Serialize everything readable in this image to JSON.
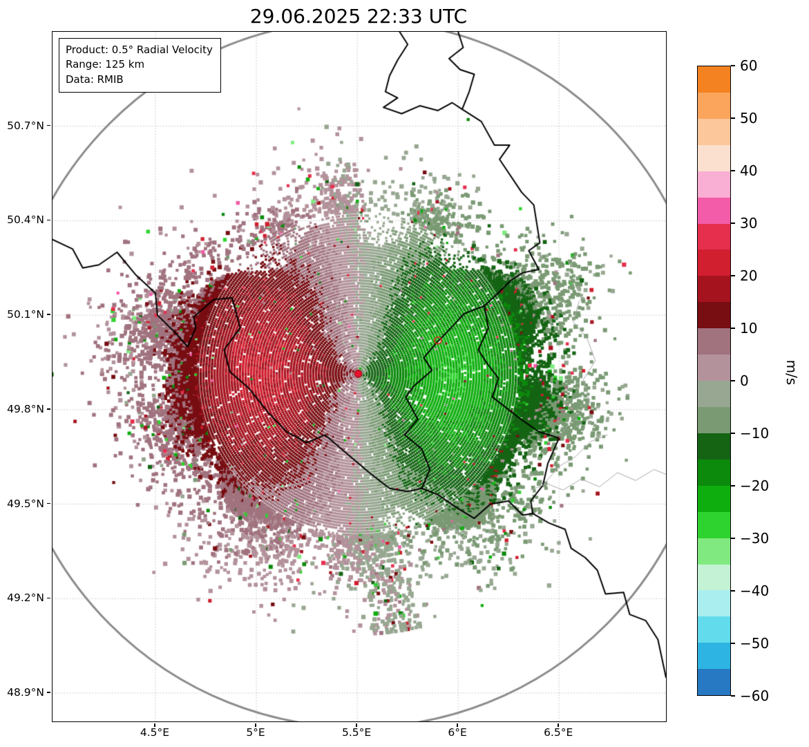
{
  "title": "29.06.2025 22:33 UTC",
  "info_box": {
    "product_line": "Product: 0.5° Radial Velocity",
    "range_line": "Range: 125 km",
    "data_line": "Data: RMIB"
  },
  "chart_data": {
    "type": "heatmap",
    "subtype": "doppler-radar-radial-velocity-ppi",
    "title": "29.06.2025 22:33 UTC",
    "product": "0.5° Radial Velocity",
    "range_km": 125,
    "data_source": "RMIB",
    "radar_site": {
      "lon": 5.505,
      "lat": 49.914,
      "marker_color": "#e8112d"
    },
    "secondary_marker": {
      "lon": 5.9,
      "lat": 50.02,
      "marker_color": "#dd2222"
    },
    "extent": {
      "lon_min": 3.99,
      "lon_max": 7.03,
      "lat_min": 48.81,
      "lat_max": 51.0
    },
    "x_axis": {
      "grid": true,
      "ticks": [
        {
          "value": 4.5,
          "label": "4.5°E"
        },
        {
          "value": 5.0,
          "label": "5°E"
        },
        {
          "value": 5.5,
          "label": "5.5°E"
        },
        {
          "value": 6.0,
          "label": "6°E"
        },
        {
          "value": 6.5,
          "label": "6.5°E"
        }
      ]
    },
    "y_axis": {
      "grid": true,
      "ticks": [
        {
          "value": 50.7,
          "label": "50.7°N"
        },
        {
          "value": 50.4,
          "label": "50.4°N"
        },
        {
          "value": 50.1,
          "label": "50.1°N"
        },
        {
          "value": 49.8,
          "label": "49.8°N"
        },
        {
          "value": 49.5,
          "label": "49.5°N"
        },
        {
          "value": 49.2,
          "label": "49.2°N"
        },
        {
          "value": 48.9,
          "label": "48.9°N"
        }
      ]
    },
    "colorbar": {
      "label": "m/s",
      "min": -60,
      "max": 60,
      "bin_size": 5,
      "ticks": [
        {
          "value": 60,
          "label": "60"
        },
        {
          "value": 50,
          "label": "50"
        },
        {
          "value": 40,
          "label": "40"
        },
        {
          "value": 30,
          "label": "30"
        },
        {
          "value": 20,
          "label": "20"
        },
        {
          "value": 10,
          "label": "10"
        },
        {
          "value": 0,
          "label": "0"
        },
        {
          "value": -10,
          "label": "−10"
        },
        {
          "value": -20,
          "label": "−20"
        },
        {
          "value": -30,
          "label": "−30"
        },
        {
          "value": -40,
          "label": "−40"
        },
        {
          "value": -50,
          "label": "−50"
        },
        {
          "value": -60,
          "label": "−60"
        }
      ],
      "colors_top_to_bottom": [
        "#f58220",
        "#fba55c",
        "#fcc79a",
        "#fbe0cf",
        "#f9aed3",
        "#f25ca8",
        "#e62e4d",
        "#d11f2f",
        "#a5131f",
        "#780d12",
        "#a0737f",
        "#b3929b",
        "#97a791",
        "#7a9a74",
        "#146414",
        "#0c8a0c",
        "#0fae0f",
        "#2fd32f",
        "#80ea80",
        "#c4f2d4",
        "#abeef0",
        "#62dcec",
        "#2db4e2",
        "#2779c4"
      ]
    },
    "velocity_field": {
      "pattern": "dipole",
      "outbound_azimuth_deg": 270,
      "outbound_side": "west",
      "inbound_side": "east",
      "peak_outbound_ms": 20,
      "peak_inbound_ms": -23,
      "core_radius_km": 55,
      "max_data_radius_km": 110,
      "zero_isodop": "north-south"
    },
    "range_ring": {
      "radius_km": 125,
      "color": "#8a8a8a"
    },
    "grid_color": "#bbbbbb",
    "borders": [
      {
        "name": "BE-NL",
        "color": "#000000",
        "width": 2,
        "points": [
          [
            5.71,
            51.0
          ],
          [
            5.75,
            50.96
          ],
          [
            5.7,
            50.91
          ],
          [
            5.66,
            50.86
          ],
          [
            5.64,
            50.81
          ],
          [
            5.7,
            50.79
          ],
          [
            5.63,
            50.76
          ],
          [
            5.72,
            50.74
          ],
          [
            5.81,
            50.765
          ],
          [
            5.9,
            50.75
          ],
          [
            5.97,
            50.775
          ],
          [
            6.02,
            50.754
          ]
        ]
      },
      {
        "name": "NL-DE",
        "color": "#000000",
        "width": 2,
        "points": [
          [
            6.0,
            51.0
          ],
          [
            6.025,
            50.95
          ],
          [
            5.955,
            50.915
          ],
          [
            6.01,
            50.88
          ],
          [
            6.08,
            50.865
          ],
          [
            6.055,
            50.81
          ],
          [
            6.02,
            50.754
          ]
        ]
      },
      {
        "name": "BE-DE",
        "color": "#000000",
        "width": 2,
        "points": [
          [
            6.02,
            50.754
          ],
          [
            6.115,
            50.715
          ],
          [
            6.18,
            50.64
          ],
          [
            6.255,
            50.64
          ],
          [
            6.205,
            50.595
          ],
          [
            6.315,
            50.49
          ],
          [
            6.375,
            50.45
          ],
          [
            6.405,
            50.33
          ],
          [
            6.35,
            50.305
          ],
          [
            6.4,
            50.245
          ],
          [
            6.32,
            50.235
          ],
          [
            6.26,
            50.21
          ],
          [
            6.19,
            50.165
          ],
          [
            6.13,
            50.13
          ]
        ]
      },
      {
        "name": "BE-LU",
        "color": "#000000",
        "width": 2,
        "points": [
          [
            6.13,
            50.13
          ],
          [
            6.03,
            50.105
          ],
          [
            5.965,
            50.06
          ],
          [
            5.89,
            50.01
          ],
          [
            5.83,
            49.965
          ],
          [
            5.87,
            49.925
          ],
          [
            5.78,
            49.875
          ],
          [
            5.74,
            49.84
          ],
          [
            5.8,
            49.77
          ],
          [
            5.735,
            49.72
          ],
          [
            5.82,
            49.675
          ],
          [
            5.86,
            49.61
          ],
          [
            5.82,
            49.55
          ]
        ]
      },
      {
        "name": "FR-BE",
        "color": "#000000",
        "width": 2,
        "points": [
          [
            3.99,
            50.34
          ],
          [
            4.09,
            50.31
          ],
          [
            4.14,
            50.25
          ],
          [
            4.22,
            50.26
          ],
          [
            4.31,
            50.3
          ],
          [
            4.4,
            50.23
          ],
          [
            4.5,
            50.17
          ],
          [
            4.51,
            50.1
          ],
          [
            4.59,
            50.05
          ],
          [
            4.66,
            50.0
          ],
          [
            4.7,
            50.06
          ],
          [
            4.69,
            50.095
          ],
          [
            4.79,
            50.15
          ],
          [
            4.88,
            50.155
          ],
          [
            4.92,
            50.06
          ],
          [
            4.84,
            49.99
          ],
          [
            4.87,
            49.92
          ],
          [
            4.96,
            49.87
          ],
          [
            5.06,
            49.79
          ],
          [
            5.15,
            49.73
          ],
          [
            5.25,
            49.695
          ],
          [
            5.34,
            49.72
          ],
          [
            5.45,
            49.66
          ],
          [
            5.56,
            49.6
          ],
          [
            5.66,
            49.55
          ],
          [
            5.75,
            49.54
          ],
          [
            5.82,
            49.55
          ]
        ]
      },
      {
        "name": "FR-LU",
        "color": "#000000",
        "width": 2,
        "points": [
          [
            5.82,
            49.55
          ],
          [
            5.9,
            49.53
          ],
          [
            5.99,
            49.49
          ],
          [
            6.08,
            49.455
          ],
          [
            6.16,
            49.5
          ],
          [
            6.25,
            49.51
          ],
          [
            6.32,
            49.465
          ],
          [
            6.37,
            49.47
          ]
        ]
      },
      {
        "name": "DE-LU",
        "color": "#000000",
        "width": 2,
        "points": [
          [
            6.13,
            50.13
          ],
          [
            6.15,
            50.06
          ],
          [
            6.1,
            49.99
          ],
          [
            6.14,
            49.95
          ],
          [
            6.2,
            49.9
          ],
          [
            6.17,
            49.84
          ],
          [
            6.23,
            49.81
          ],
          [
            6.31,
            49.77
          ],
          [
            6.4,
            49.73
          ],
          [
            6.5,
            49.71
          ],
          [
            6.445,
            49.63
          ],
          [
            6.42,
            49.56
          ],
          [
            6.36,
            49.51
          ],
          [
            6.37,
            49.47
          ]
        ]
      },
      {
        "name": "FR-DE",
        "color": "#000000",
        "width": 2,
        "points": [
          [
            6.37,
            49.47
          ],
          [
            6.45,
            49.44
          ],
          [
            6.53,
            49.42
          ],
          [
            6.56,
            49.36
          ],
          [
            6.63,
            49.33
          ],
          [
            6.69,
            49.29
          ],
          [
            6.73,
            49.215
          ],
          [
            6.82,
            49.22
          ],
          [
            6.85,
            49.15
          ],
          [
            6.93,
            49.13
          ],
          [
            6.99,
            49.07
          ],
          [
            7.03,
            48.95
          ]
        ]
      },
      {
        "name": "district-1",
        "color": "#a9a9a9",
        "width": 1,
        "points": [
          [
            6.36,
            49.545
          ],
          [
            6.44,
            49.565
          ],
          [
            6.52,
            49.545
          ],
          [
            6.61,
            49.58
          ],
          [
            6.7,
            49.555
          ],
          [
            6.79,
            49.6
          ],
          [
            6.88,
            49.575
          ],
          [
            6.97,
            49.61
          ],
          [
            7.03,
            49.595
          ]
        ]
      },
      {
        "name": "district-2",
        "color": "#a9a9a9",
        "width": 1,
        "points": [
          [
            6.5,
            49.71
          ],
          [
            6.565,
            49.77
          ],
          [
            6.65,
            49.825
          ],
          [
            6.62,
            49.895
          ],
          [
            6.68,
            49.955
          ],
          [
            6.64,
            50.025
          ],
          [
            6.57,
            50.08
          ],
          [
            6.6,
            50.145
          ]
        ]
      },
      {
        "name": "district-3",
        "color": "#a9a9a9",
        "width": 1,
        "points": [
          [
            6.42,
            49.56
          ],
          [
            6.5,
            49.62
          ],
          [
            6.58,
            49.65
          ],
          [
            6.66,
            49.7
          ],
          [
            6.74,
            49.72
          ]
        ]
      }
    ]
  }
}
